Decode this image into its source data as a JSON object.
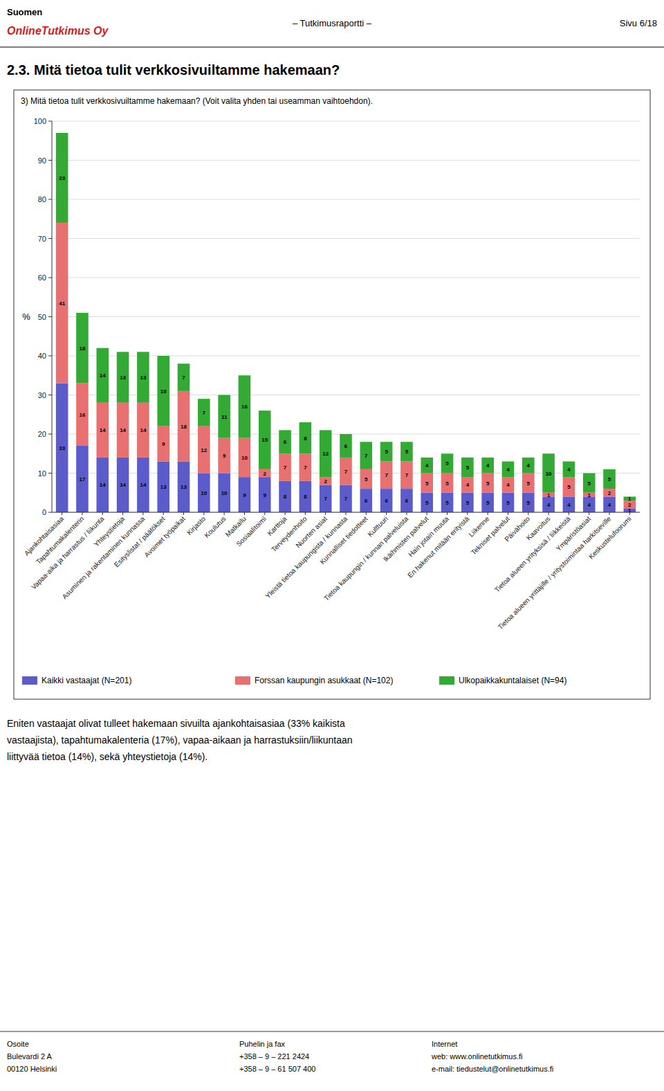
{
  "page": {
    "header_left1": "Suomen",
    "header_left2": "OnlineTutkimus Oy",
    "header_center": "– Tutkimusraportti –",
    "header_right": "Sivu 6/18",
    "section_title": "2.3. Mitä tietoa tulit verkkosivuiltamme hakemaan?",
    "body_text": "Eniten vastaajat olivat tulleet hakemaan sivuilta ajankohtaisasiaa (33% kaikista\nvastaajista), tapahtumakalenteria (17%), vapaa-aikaan ja harrastuksiin/liikuntaan\nliittyvää tietoa (14%), sekä yhteystietoja (14%).",
    "footer_left": "Osoite\nBulevardi 2 A\n00120 Helsinki",
    "footer_center": "Puhelin ja fax\n+358 – 9 – 221 2424\n+358 – 9 – 61 507 400",
    "footer_right": "Internet\nweb: www.onlinetutkimus.fi\ne-mail: tiedustelut@onlinetutkimus.fi"
  },
  "chart_data": {
    "type": "bar",
    "stacked": true,
    "title": "3) Mitä tietoa tulit verkkosivuiltamme hakemaan? (Voit valita yhden tai useamman vaihtoehdon).",
    "y_label": "%",
    "categories": [
      "Ajankohtaisasiaa",
      "Tapahtumakalenterin",
      "Vapaa-aika ja harrastus / liikunta",
      "Yhteystietoja",
      "Asuminen ja rakentaminen kunnassa",
      "Esityslistat / päätökset",
      "Avoimet työpaikat",
      "Kirjasto",
      "Koulutus",
      "Matkailu",
      "Sosiaalitoimì",
      "Karttoja",
      "Terveydenhoito",
      "Nuorten asiat",
      "Yleistä tietoa kaupungista / kunnasta",
      "Kunnalliset tiedotteet",
      "Kulttuuri",
      "Tietoa kaupungin / kunnan palveluista",
      "Ikäihmisten palvelut",
      "Hain jotain muuta",
      "En hakenut mitään erityistä",
      "Liikenne",
      "Tekniset palvelut",
      "Päivähoito",
      "Kaavoitus",
      "Tietoa alueen yrityksisä / liikkeistä",
      "Ympäristöasiat",
      "Tietoa alueen yrittäjille / yritystoimintaa harkitseville",
      "Keskustelufoorumi"
    ],
    "series": [
      {
        "name": "Kaikki vastaajat (N=201)",
        "color": "#5b5bcc",
        "values": [
          33,
          17,
          14,
          14,
          14,
          13,
          13,
          10,
          10,
          9,
          9,
          8,
          8,
          7,
          7,
          6,
          6,
          6,
          5,
          5,
          5,
          5,
          5,
          5,
          4,
          4,
          4,
          4,
          1
        ]
      },
      {
        "name": "Forssan kaupungin asukkaat (N=102)",
        "color": "#e87070",
        "values": [
          41,
          16,
          14,
          14,
          14,
          9,
          18,
          12,
          9,
          10,
          2,
          7,
          7,
          2,
          7,
          5,
          7,
          7,
          5,
          5,
          4,
          5,
          4,
          5,
          1,
          5,
          1,
          2,
          2
        ]
      },
      {
        "name": "Ulkopaikkakuntalaiset (N=94)",
        "color": "#33aa33",
        "values": [
          23,
          18,
          14,
          13,
          13,
          18,
          7,
          7,
          11,
          16,
          15,
          6,
          8,
          12,
          6,
          7,
          5,
          5,
          4,
          5,
          5,
          4,
          4,
          4,
          10,
          4,
          5,
          5,
          1
        ]
      }
    ],
    "ylim": [
      0,
      100
    ],
    "yticks": [
      0,
      10,
      20,
      30,
      40,
      50,
      60,
      70,
      80,
      90,
      100
    ],
    "grid": true,
    "data_labels": true
  }
}
